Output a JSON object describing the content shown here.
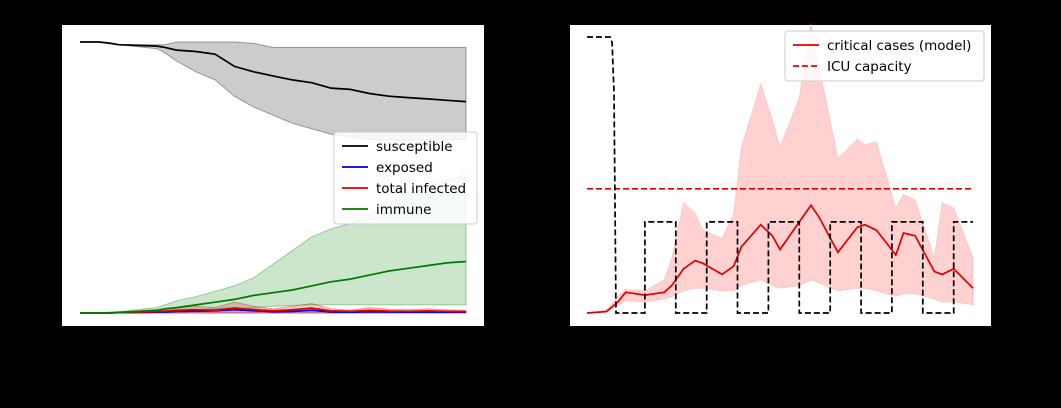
{
  "chart_data": [
    {
      "type": "line",
      "title": "",
      "xlabel": "",
      "ylabel": "",
      "xlim": [
        0,
        100
      ],
      "ylim": [
        0,
        1
      ],
      "grid": false,
      "legend_position": "center-right",
      "x": [
        0,
        5,
        8,
        10,
        20,
        22,
        25,
        30,
        35,
        40,
        45,
        50,
        55,
        60,
        65,
        70,
        75,
        80,
        85,
        90,
        95,
        100
      ],
      "series": [
        {
          "name": "susceptible",
          "color": "#000000",
          "band_color": "#000000",
          "mean": [
            1.0,
            1.0,
            0.995,
            0.99,
            0.985,
            0.98,
            0.97,
            0.965,
            0.955,
            0.91,
            0.89,
            0.875,
            0.86,
            0.85,
            0.83,
            0.825,
            0.81,
            0.8,
            0.795,
            0.79,
            0.785,
            0.78
          ],
          "lower": [
            1.0,
            1.0,
            0.995,
            0.99,
            0.975,
            0.96,
            0.93,
            0.89,
            0.86,
            0.8,
            0.76,
            0.73,
            0.7,
            0.68,
            0.66,
            0.65,
            0.64,
            0.64,
            0.64,
            0.64,
            0.64,
            0.64
          ],
          "upper": [
            1.0,
            1.0,
            0.995,
            0.99,
            0.99,
            0.99,
            1.0,
            1.0,
            1.0,
            1.0,
            0.995,
            0.98,
            0.98,
            0.98,
            0.98,
            0.98,
            0.98,
            0.98,
            0.98,
            0.98,
            0.98,
            0.98
          ]
        },
        {
          "name": "exposed",
          "color": "#0000cc",
          "band_color": "#0000cc",
          "mean": [
            0.0,
            0.0,
            0.0,
            0.001,
            0.003,
            0.004,
            0.006,
            0.007,
            0.008,
            0.012,
            0.008,
            0.005,
            0.006,
            0.01,
            0.004,
            0.003,
            0.005,
            0.004,
            0.003,
            0.004,
            0.003,
            0.003
          ],
          "lower": [
            0.0,
            0.0,
            0.0,
            0.0,
            0.0,
            0.0,
            0.0,
            0.0,
            0.0,
            0.0,
            0.0,
            0.0,
            0.0,
            0.0,
            0.0,
            0.0,
            0.0,
            0.0,
            0.0,
            0.0,
            0.0,
            0.0
          ],
          "upper": [
            0.0,
            0.0,
            0.0,
            0.002,
            0.006,
            0.008,
            0.01,
            0.012,
            0.015,
            0.02,
            0.015,
            0.01,
            0.012,
            0.018,
            0.008,
            0.006,
            0.009,
            0.007,
            0.006,
            0.007,
            0.006,
            0.006
          ]
        },
        {
          "name": "total infected",
          "color": "#e00000",
          "band_color": "#e00000",
          "mean": [
            0.0,
            0.0,
            0.001,
            0.002,
            0.005,
            0.007,
            0.01,
            0.012,
            0.01,
            0.018,
            0.012,
            0.008,
            0.012,
            0.018,
            0.008,
            0.006,
            0.01,
            0.007,
            0.006,
            0.008,
            0.006,
            0.005
          ],
          "lower": [
            0.0,
            0.0,
            0.0,
            0.0,
            0.0,
            0.0,
            0.0,
            0.0,
            0.0,
            0.0,
            0.0,
            0.0,
            0.0,
            0.0,
            0.0,
            0.0,
            0.0,
            0.0,
            0.0,
            0.0,
            0.0,
            0.0
          ],
          "upper": [
            0.0,
            0.0,
            0.002,
            0.004,
            0.012,
            0.015,
            0.02,
            0.025,
            0.02,
            0.04,
            0.025,
            0.015,
            0.025,
            0.035,
            0.016,
            0.01,
            0.02,
            0.014,
            0.012,
            0.016,
            0.012,
            0.01
          ]
        },
        {
          "name": "immune",
          "color": "#007a00",
          "band_color": "#008000",
          "mean": [
            0.0,
            0.0,
            0.001,
            0.002,
            0.01,
            0.015,
            0.02,
            0.03,
            0.04,
            0.05,
            0.065,
            0.075,
            0.085,
            0.1,
            0.115,
            0.125,
            0.14,
            0.155,
            0.165,
            0.175,
            0.185,
            0.19
          ],
          "lower": [
            0.0,
            0.0,
            0.0,
            0.0,
            0.002,
            0.004,
            0.006,
            0.008,
            0.01,
            0.015,
            0.02,
            0.025,
            0.028,
            0.03,
            0.03,
            0.03,
            0.03,
            0.03,
            0.03,
            0.03,
            0.03,
            0.03
          ],
          "upper": [
            0.0,
            0.0,
            0.002,
            0.005,
            0.02,
            0.03,
            0.045,
            0.06,
            0.08,
            0.1,
            0.13,
            0.18,
            0.23,
            0.28,
            0.31,
            0.33,
            0.36,
            0.41,
            0.44,
            0.47,
            0.49,
            0.51
          ]
        }
      ]
    },
    {
      "type": "line",
      "title": "",
      "xlabel": "",
      "ylabel": "",
      "xlim": [
        0,
        100
      ],
      "ylim": [
        0,
        1
      ],
      "grid": false,
      "legend_position": "upper-right",
      "series": [
        {
          "name": "critical cases (model)",
          "color": "#e00000",
          "style": "solid",
          "band_color": "#ff9999",
          "x": [
            0,
            5,
            8,
            10,
            15,
            20,
            22,
            25,
            28,
            30,
            35,
            38,
            40,
            45,
            48,
            50,
            55,
            58,
            60,
            65,
            70,
            72,
            75,
            80,
            82,
            85,
            90,
            92,
            95,
            100
          ],
          "mean": [
            0.0,
            0.005,
            0.04,
            0.075,
            0.065,
            0.075,
            0.1,
            0.16,
            0.19,
            0.18,
            0.14,
            0.17,
            0.24,
            0.32,
            0.28,
            0.23,
            0.33,
            0.39,
            0.35,
            0.22,
            0.31,
            0.32,
            0.3,
            0.21,
            0.29,
            0.28,
            0.15,
            0.14,
            0.16,
            0.09
          ],
          "lower": [
            0.0,
            0.003,
            0.025,
            0.045,
            0.04,
            0.05,
            0.06,
            0.08,
            0.09,
            0.09,
            0.08,
            0.08,
            0.1,
            0.12,
            0.1,
            0.09,
            0.1,
            0.12,
            0.11,
            0.08,
            0.09,
            0.09,
            0.08,
            0.06,
            0.07,
            0.07,
            0.05,
            0.04,
            0.04,
            0.03
          ],
          "upper": [
            0.0,
            0.01,
            0.06,
            0.085,
            0.08,
            0.12,
            0.2,
            0.4,
            0.36,
            0.3,
            0.27,
            0.36,
            0.6,
            0.83,
            0.7,
            0.6,
            0.78,
            1.05,
            0.9,
            0.56,
            0.63,
            0.61,
            0.62,
            0.38,
            0.43,
            0.41,
            0.2,
            0.4,
            0.38,
            0.2
          ]
        },
        {
          "name": "ICU capacity",
          "color": "#e00000",
          "style": "dashed",
          "x": [
            0,
            100
          ],
          "mean": [
            0.45,
            0.45
          ]
        },
        {
          "name": "",
          "color": "#000000",
          "style": "dashed",
          "x": [
            0,
            6,
            6.5,
            7,
            7.5,
            8,
            15,
            15,
            23,
            23,
            31,
            31,
            39,
            39,
            47,
            47,
            55,
            55,
            63,
            63,
            71,
            71,
            79,
            79,
            87,
            87,
            95,
            95,
            100
          ],
          "mean": [
            1.0,
            1.0,
            0.98,
            0.8,
            0.0,
            0.0,
            0.0,
            0.33,
            0.33,
            0.0,
            0.0,
            0.33,
            0.33,
            0.0,
            0.0,
            0.33,
            0.33,
            0.0,
            0.0,
            0.33,
            0.33,
            0.0,
            0.0,
            0.33,
            0.33,
            0.0,
            0.0,
            0.33,
            0.33
          ]
        }
      ]
    }
  ]
}
